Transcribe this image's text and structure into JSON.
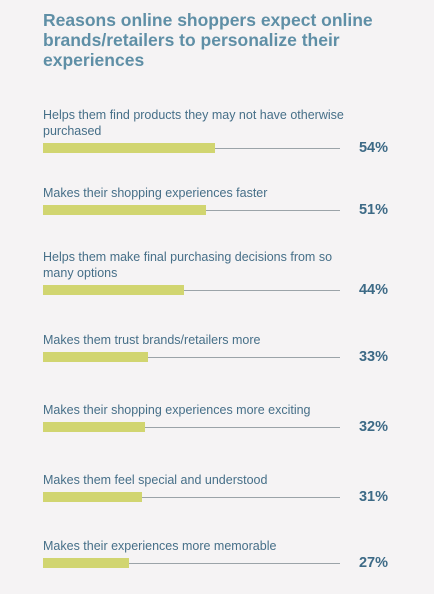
{
  "chart_data": {
    "type": "bar",
    "title": "Reasons online shoppers expect online brands/retailers to personalize their experiences",
    "categories": [
      "Helps them find products they may not have otherwise purchased",
      "Makes their shopping experiences faster",
      "Helps them make final purchasing decisions from so many options",
      "Makes them trust brands/retailers more",
      "Makes their shopping experiences more exciting",
      "Makes them feel special and understood",
      "Makes their experiences more memorable"
    ],
    "values": [
      54,
      51,
      44,
      33,
      32,
      31,
      27
    ],
    "value_labels": [
      "54%",
      "51%",
      "44%",
      "33%",
      "32%",
      "31%",
      "27%"
    ],
    "value_unit": "%",
    "xlim": [
      0,
      100
    ],
    "orientation": "horizontal",
    "grid": false,
    "legend": "none"
  },
  "colors": {
    "background": "#f5f3f4",
    "title": "#5f8fa6",
    "label": "#466f88",
    "value": "#3d6a86",
    "bar": "#d1d570",
    "track": "#9ba3a8"
  }
}
